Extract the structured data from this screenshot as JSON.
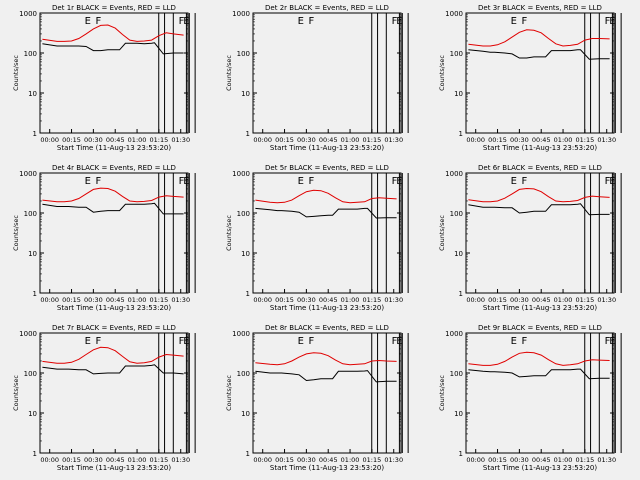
{
  "figure": {
    "background": "#f0f0f0",
    "axis_color": "#000000",
    "events_color": "#000000",
    "lld_color": "#e00000"
  },
  "chart_data": [
    {
      "type": "line",
      "title": "Det 1r BLACK = Events, RED = LLD",
      "xlabel": "Start Time (11-Aug-13 23:53:20)",
      "ylabel": "Counts/sec",
      "y_scale": "log",
      "ylim": [
        1,
        1000
      ],
      "xlim": [
        "23:53:20",
        "01:35:00"
      ],
      "x_ticks": [
        "00:00",
        "00:15",
        "00:30",
        "00:45",
        "01:00",
        "01:15",
        "01:30"
      ],
      "y_ticks": [
        "1",
        "10",
        "100",
        "1000"
      ],
      "markers": [
        "E",
        "F",
        "F",
        "E"
      ],
      "series": [
        {
          "name": "Events",
          "color": "#000000",
          "x": [
            "23:55",
            "00:05",
            "00:10",
            "00:13",
            "00:20",
            "00:25",
            "00:30",
            "00:35",
            "00:40",
            "00:45",
            "00:48",
            "00:52",
            "01:00",
            "01:05",
            "01:10",
            "01:12",
            "01:18",
            "01:25",
            "01:32"
          ],
          "y": [
            170,
            150,
            150,
            150,
            150,
            145,
            115,
            115,
            120,
            120,
            120,
            175,
            175,
            170,
            175,
            180,
            95,
            100,
            100
          ]
        },
        {
          "name": "LLD",
          "color": "#e00000",
          "x": [
            "23:55",
            "00:05",
            "00:10",
            "00:15",
            "00:20",
            "00:25",
            "00:30",
            "00:35",
            "00:40",
            "00:45",
            "00:50",
            "00:55",
            "01:00",
            "01:05",
            "01:10",
            "01:15",
            "01:20",
            "01:25",
            "01:32"
          ],
          "y": [
            220,
            195,
            195,
            200,
            230,
            300,
            400,
            490,
            500,
            420,
            290,
            210,
            195,
            200,
            210,
            270,
            320,
            300,
            280
          ]
        }
      ]
    },
    {
      "type": "line",
      "title": "Det 2r BLACK = Events, RED = LLD",
      "xlabel": "Start Time (11-Aug-13 23:53:20)",
      "ylabel": "Counts/sec",
      "y_scale": "log",
      "ylim": [
        1,
        1000
      ],
      "xlim": [
        "23:53:20",
        "01:35:00"
      ],
      "x_ticks": [
        "00:00",
        "00:15",
        "00:30",
        "00:45",
        "01:00",
        "01:15",
        "01:30"
      ],
      "y_ticks": [
        "1",
        "10",
        "100",
        "1000"
      ],
      "markers": [
        "E",
        "F",
        "F",
        "E"
      ],
      "series": []
    },
    {
      "type": "line",
      "title": "Det 3r BLACK = Events, RED = LLD",
      "xlabel": "Start Time (11-Aug-13 23:53:20)",
      "ylabel": "Counts/sec",
      "y_scale": "log",
      "ylim": [
        1,
        1000
      ],
      "xlim": [
        "23:53:20",
        "01:35:00"
      ],
      "x_ticks": [
        "00:00",
        "00:15",
        "00:30",
        "00:45",
        "01:00",
        "01:15",
        "01:30"
      ],
      "y_ticks": [
        "1",
        "10",
        "100",
        "1000"
      ],
      "markers": [
        "E",
        "F",
        "F",
        "E"
      ],
      "series": [
        {
          "name": "Events",
          "color": "#000000",
          "x": [
            "23:55",
            "00:05",
            "00:10",
            "00:13",
            "00:20",
            "00:25",
            "00:30",
            "00:35",
            "00:40",
            "00:45",
            "00:48",
            "00:52",
            "01:00",
            "01:05",
            "01:10",
            "01:12",
            "01:18",
            "01:25",
            "01:32"
          ],
          "y": [
            120,
            110,
            105,
            105,
            100,
            95,
            75,
            75,
            80,
            80,
            80,
            115,
            115,
            115,
            120,
            120,
            70,
            72,
            72
          ]
        },
        {
          "name": "LLD",
          "color": "#e00000",
          "x": [
            "23:55",
            "00:05",
            "00:10",
            "00:15",
            "00:20",
            "00:25",
            "00:30",
            "00:35",
            "00:40",
            "00:45",
            "00:50",
            "00:55",
            "01:00",
            "01:05",
            "01:10",
            "01:15",
            "01:20",
            "01:25",
            "01:32"
          ],
          "y": [
            165,
            150,
            150,
            160,
            190,
            250,
            330,
            380,
            370,
            320,
            230,
            170,
            150,
            155,
            165,
            210,
            230,
            230,
            225
          ]
        }
      ]
    },
    {
      "type": "line",
      "title": "Det 4r BLACK = Events, RED = LLD",
      "xlabel": "Start Time (11-Aug-13 23:53:20)",
      "ylabel": "Counts/sec",
      "y_scale": "log",
      "ylim": [
        1,
        1000
      ],
      "xlim": [
        "23:53:20",
        "01:35:00"
      ],
      "x_ticks": [
        "00:00",
        "00:15",
        "00:30",
        "00:45",
        "01:00",
        "01:15",
        "01:30"
      ],
      "y_ticks": [
        "1",
        "10",
        "100",
        "1000"
      ],
      "markers": [
        "E",
        "F",
        "F",
        "E"
      ],
      "series": [
        {
          "name": "Events",
          "color": "#000000",
          "x": [
            "23:55",
            "00:05",
            "00:10",
            "00:13",
            "00:20",
            "00:25",
            "00:30",
            "00:35",
            "00:40",
            "00:45",
            "00:48",
            "00:52",
            "01:00",
            "01:05",
            "01:10",
            "01:12",
            "01:18",
            "01:25",
            "01:32"
          ],
          "y": [
            165,
            145,
            145,
            145,
            140,
            140,
            105,
            110,
            115,
            115,
            115,
            165,
            165,
            165,
            170,
            175,
            95,
            95,
            95
          ]
        },
        {
          "name": "LLD",
          "color": "#e00000",
          "x": [
            "23:55",
            "00:05",
            "00:10",
            "00:15",
            "00:20",
            "00:25",
            "00:30",
            "00:35",
            "00:40",
            "00:45",
            "00:50",
            "00:55",
            "01:00",
            "01:05",
            "01:10",
            "01:15",
            "01:20",
            "01:25",
            "01:32"
          ],
          "y": [
            210,
            190,
            190,
            200,
            230,
            300,
            390,
            420,
            410,
            350,
            260,
            200,
            190,
            195,
            205,
            250,
            270,
            260,
            250
          ]
        }
      ]
    },
    {
      "type": "line",
      "title": "Det 5r BLACK = Events, RED = LLD",
      "xlabel": "Start Time (11-Aug-13 23:53:20)",
      "ylabel": "Counts/sec",
      "y_scale": "log",
      "ylim": [
        1,
        1000
      ],
      "xlim": [
        "23:53:20",
        "01:35:00"
      ],
      "x_ticks": [
        "00:00",
        "00:15",
        "00:30",
        "00:45",
        "01:00",
        "01:15",
        "01:30"
      ],
      "y_ticks": [
        "1",
        "10",
        "100",
        "1000"
      ],
      "markers": [
        "E",
        "F",
        "F",
        "E"
      ],
      "series": [
        {
          "name": "Events",
          "color": "#000000",
          "x": [
            "23:55",
            "00:05",
            "00:10",
            "00:13",
            "00:20",
            "00:25",
            "00:30",
            "00:35",
            "00:40",
            "00:45",
            "00:48",
            "00:52",
            "01:00",
            "01:05",
            "01:10",
            "01:12",
            "01:18",
            "01:25",
            "01:32"
          ],
          "y": [
            130,
            120,
            115,
            115,
            110,
            105,
            80,
            82,
            85,
            88,
            88,
            125,
            125,
            125,
            130,
            130,
            75,
            76,
            76
          ]
        },
        {
          "name": "LLD",
          "color": "#e00000",
          "x": [
            "23:55",
            "00:05",
            "00:10",
            "00:15",
            "00:20",
            "00:25",
            "00:30",
            "00:35",
            "00:40",
            "00:45",
            "00:50",
            "00:55",
            "01:00",
            "01:05",
            "01:10",
            "01:15",
            "01:20",
            "01:25",
            "01:32"
          ],
          "y": [
            210,
            185,
            180,
            185,
            210,
            270,
            340,
            370,
            360,
            310,
            240,
            190,
            180,
            185,
            190,
            230,
            240,
            235,
            225
          ]
        }
      ]
    },
    {
      "type": "line",
      "title": "Det 6r BLACK = Events, RED = LLD",
      "xlabel": "Start Time (11-Aug-13 23:53:20)",
      "ylabel": "Counts/sec",
      "y_scale": "log",
      "ylim": [
        1,
        1000
      ],
      "xlim": [
        "23:53:20",
        "01:35:00"
      ],
      "x_ticks": [
        "00:00",
        "00:15",
        "00:30",
        "00:45",
        "01:00",
        "01:15",
        "01:30"
      ],
      "y_ticks": [
        "1",
        "10",
        "100",
        "1000"
      ],
      "markers": [
        "E",
        "F",
        "F",
        "E"
      ],
      "series": [
        {
          "name": "Events",
          "color": "#000000",
          "x": [
            "23:55",
            "00:05",
            "00:10",
            "00:13",
            "00:20",
            "00:25",
            "00:30",
            "00:35",
            "00:40",
            "00:45",
            "00:48",
            "00:52",
            "01:00",
            "01:05",
            "01:10",
            "01:12",
            "01:18",
            "01:25",
            "01:32"
          ],
          "y": [
            160,
            140,
            140,
            140,
            135,
            135,
            100,
            105,
            110,
            110,
            110,
            160,
            160,
            160,
            165,
            170,
            90,
            92,
            92
          ]
        },
        {
          "name": "LLD",
          "color": "#e00000",
          "x": [
            "23:55",
            "00:05",
            "00:10",
            "00:15",
            "00:20",
            "00:25",
            "00:30",
            "00:35",
            "00:40",
            "00:45",
            "00:50",
            "00:55",
            "01:00",
            "01:05",
            "01:10",
            "01:15",
            "01:20",
            "01:25",
            "01:32"
          ],
          "y": [
            215,
            190,
            190,
            200,
            235,
            300,
            390,
            410,
            400,
            340,
            255,
            200,
            190,
            195,
            205,
            245,
            265,
            255,
            245
          ]
        }
      ]
    },
    {
      "type": "line",
      "title": "Det 7r BLACK = Events, RED = LLD",
      "xlabel": "Start Time (11-Aug-13 23:53:20)",
      "ylabel": "Counts/sec",
      "y_scale": "log",
      "ylim": [
        1,
        1000
      ],
      "xlim": [
        "23:53:20",
        "01:35:00"
      ],
      "x_ticks": [
        "00:00",
        "00:15",
        "00:30",
        "00:45",
        "01:00",
        "01:15",
        "01:30"
      ],
      "y_ticks": [
        "1",
        "10",
        "100",
        "1000"
      ],
      "markers": [
        "E",
        "F",
        "F",
        "E"
      ],
      "series": [
        {
          "name": "Events",
          "color": "#000000",
          "x": [
            "23:55",
            "00:05",
            "00:10",
            "00:13",
            "00:20",
            "00:25",
            "00:30",
            "00:35",
            "00:40",
            "00:45",
            "00:48",
            "00:52",
            "01:00",
            "01:05",
            "01:10",
            "01:12",
            "01:18",
            "01:25",
            "01:32"
          ],
          "y": [
            140,
            125,
            125,
            125,
            120,
            120,
            95,
            98,
            100,
            100,
            100,
            150,
            150,
            150,
            155,
            160,
            100,
            100,
            95
          ]
        },
        {
          "name": "LLD",
          "color": "#e00000",
          "x": [
            "23:55",
            "00:05",
            "00:10",
            "00:15",
            "00:20",
            "00:25",
            "00:30",
            "00:35",
            "00:40",
            "00:45",
            "00:50",
            "00:55",
            "01:00",
            "01:05",
            "01:10",
            "01:15",
            "01:20",
            "01:25",
            "01:32"
          ],
          "y": [
            195,
            175,
            175,
            185,
            220,
            290,
            380,
            440,
            430,
            360,
            260,
            190,
            175,
            180,
            195,
            250,
            290,
            280,
            265
          ]
        }
      ]
    },
    {
      "type": "line",
      "title": "Det 8r BLACK = Events, RED = LLD",
      "xlabel": "Start Time (11-Aug-13 23:53:20)",
      "ylabel": "Counts/sec",
      "y_scale": "log",
      "ylim": [
        1,
        1000
      ],
      "xlim": [
        "23:53:20",
        "01:35:00"
      ],
      "x_ticks": [
        "00:00",
        "00:15",
        "00:30",
        "00:45",
        "01:00",
        "01:15",
        "01:30"
      ],
      "y_ticks": [
        "1",
        "10",
        "100",
        "1000"
      ],
      "markers": [
        "E",
        "F",
        "F",
        "E"
      ],
      "series": [
        {
          "name": "Events",
          "color": "#000000",
          "x": [
            "23:55",
            "00:05",
            "00:10",
            "00:13",
            "00:20",
            "00:25",
            "00:30",
            "00:35",
            "00:40",
            "00:45",
            "00:48",
            "00:52",
            "01:00",
            "01:05",
            "01:10",
            "01:12",
            "01:18",
            "01:25",
            "01:32"
          ],
          "y": [
            110,
            100,
            100,
            100,
            95,
            90,
            65,
            68,
            72,
            72,
            72,
            110,
            110,
            110,
            112,
            115,
            60,
            62,
            62
          ]
        },
        {
          "name": "LLD",
          "color": "#e00000",
          "x": [
            "23:55",
            "00:05",
            "00:10",
            "00:15",
            "00:20",
            "00:25",
            "00:30",
            "00:35",
            "00:40",
            "00:45",
            "00:50",
            "00:55",
            "01:00",
            "01:05",
            "01:10",
            "01:15",
            "01:20",
            "01:25",
            "01:32"
          ],
          "y": [
            180,
            165,
            160,
            170,
            200,
            250,
            300,
            320,
            310,
            270,
            210,
            170,
            160,
            165,
            170,
            200,
            205,
            200,
            195
          ]
        }
      ]
    },
    {
      "type": "line",
      "title": "Det 9r BLACK = Events, RED = LLD",
      "xlabel": "Start Time (11-Aug-13 23:53:20)",
      "ylabel": "Counts/sec",
      "y_scale": "log",
      "ylim": [
        1,
        1000
      ],
      "xlim": [
        "23:53:20",
        "01:35:00"
      ],
      "x_ticks": [
        "00:00",
        "00:15",
        "00:30",
        "00:45",
        "01:00",
        "01:15",
        "01:30"
      ],
      "y_ticks": [
        "1",
        "10",
        "100",
        "1000"
      ],
      "markers": [
        "E",
        "F",
        "F",
        "E"
      ],
      "series": [
        {
          "name": "Events",
          "color": "#000000",
          "x": [
            "23:55",
            "00:05",
            "00:10",
            "00:13",
            "00:20",
            "00:25",
            "00:30",
            "00:35",
            "00:40",
            "00:45",
            "00:48",
            "00:52",
            "01:00",
            "01:05",
            "01:10",
            "01:12",
            "01:18",
            "01:25",
            "01:32"
          ],
          "y": [
            120,
            110,
            108,
            108,
            105,
            100,
            80,
            82,
            85,
            85,
            85,
            120,
            120,
            120,
            125,
            125,
            72,
            74,
            74
          ]
        },
        {
          "name": "LLD",
          "color": "#e00000",
          "x": [
            "23:55",
            "00:05",
            "00:10",
            "00:15",
            "00:20",
            "00:25",
            "00:30",
            "00:35",
            "00:40",
            "00:45",
            "00:50",
            "00:55",
            "01:00",
            "01:05",
            "01:10",
            "01:15",
            "01:20",
            "01:25",
            "01:32"
          ],
          "y": [
            170,
            155,
            155,
            165,
            195,
            250,
            310,
            330,
            320,
            280,
            215,
            170,
            155,
            160,
            170,
            200,
            215,
            210,
            205
          ]
        }
      ]
    }
  ]
}
